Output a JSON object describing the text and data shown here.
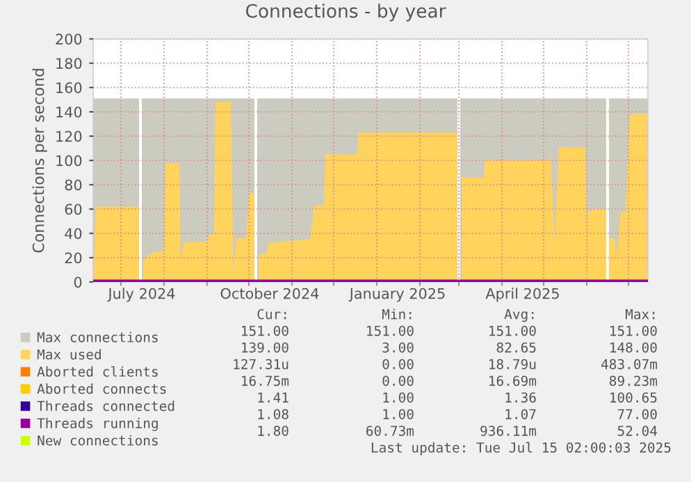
{
  "chart_data": {
    "type": "area",
    "title": "Connections - by year",
    "ylabel": "Connections per second",
    "xlim": [
      "2024-06-11",
      "2025-07-15"
    ],
    "ylim": [
      0,
      200
    ],
    "yticks": [
      0,
      20,
      40,
      60,
      80,
      100,
      120,
      140,
      160,
      180,
      200
    ],
    "xticks": [
      {
        "value": "2024-07-01",
        "label": null
      },
      {
        "value": "2024-07-16",
        "label": "July 2024"
      },
      {
        "value": "2024-08-01",
        "label": null
      },
      {
        "value": "2024-09-01",
        "label": null
      },
      {
        "value": "2024-10-01",
        "label": null
      },
      {
        "value": "2024-10-16",
        "label": "October 2024"
      },
      {
        "value": "2024-11-01",
        "label": null
      },
      {
        "value": "2024-12-01",
        "label": null
      },
      {
        "value": "2025-01-01",
        "label": null
      },
      {
        "value": "2025-01-16",
        "label": "January 2025"
      },
      {
        "value": "2025-02-01",
        "label": null
      },
      {
        "value": "2025-03-01",
        "label": null
      },
      {
        "value": "2025-04-01",
        "label": null
      },
      {
        "value": "2025-04-16",
        "label": "April 2025"
      },
      {
        "value": "2025-05-01",
        "label": null
      },
      {
        "value": "2025-06-01",
        "label": null
      },
      {
        "value": "2025-07-01",
        "label": null
      }
    ],
    "grid": true,
    "legend": "bottom",
    "series": [
      {
        "name": "Max connections",
        "color": "#cccbc0",
        "x": [
          "2024-06-11",
          "2024-07-14",
          "2024-07-15",
          "2024-07-16",
          "2024-10-05",
          "2024-10-06",
          "2024-10-07",
          "2025-02-28",
          "2025-03-01",
          "2025-03-02",
          "2025-06-15",
          "2025-06-16",
          "2025-06-17",
          "2025-07-15"
        ],
        "values": [
          151,
          151,
          null,
          151,
          151,
          null,
          151,
          151,
          null,
          151,
          151,
          null,
          151,
          151
        ]
      },
      {
        "name": "Max used",
        "color": "#ffd35c",
        "x": [
          "2024-06-11",
          "2024-06-13",
          "2024-07-14",
          "2024-07-15",
          "2024-07-17",
          "2024-07-20",
          "2024-07-27",
          "2024-08-01",
          "2024-08-02",
          "2024-08-12",
          "2024-08-13",
          "2024-08-16",
          "2024-08-31",
          "2024-09-02",
          "2024-09-06",
          "2024-09-07",
          "2024-09-18",
          "2024-09-20",
          "2024-09-22",
          "2024-09-29",
          "2024-10-01",
          "2024-10-05",
          "2024-10-06",
          "2024-10-08",
          "2024-10-14",
          "2024-10-15",
          "2024-11-01",
          "2024-11-14",
          "2024-11-17",
          "2024-11-24",
          "2024-11-25",
          "2024-12-18",
          "2024-12-19",
          "2025-02-28",
          "2025-03-01",
          "2025-03-03",
          "2025-03-19",
          "2025-03-20",
          "2025-05-05",
          "2025-05-06",
          "2025-05-09",
          "2025-05-12",
          "2025-05-31",
          "2025-06-01",
          "2025-06-02",
          "2025-06-06",
          "2025-06-15",
          "2025-06-16",
          "2025-06-17",
          "2025-06-21",
          "2025-06-23",
          "2025-06-25",
          "2025-06-29",
          "2025-07-02",
          "2025-07-15"
        ],
        "values": [
          0,
          62,
          62,
          null,
          17,
          22,
          25,
          25,
          98,
          98,
          22,
          33,
          33,
          38,
          40,
          148,
          148,
          10,
          36,
          36,
          73,
          73,
          null,
          22,
          24,
          32,
          34,
          35,
          63,
          63,
          105,
          105,
          123,
          123,
          null,
          86,
          86,
          100,
          100,
          107,
          34,
          111,
          111,
          45,
          58,
          60,
          60,
          null,
          36,
          36,
          22,
          57,
          57,
          138,
          139
        ]
      },
      {
        "name": "Aborted clients",
        "color": "#ff7f00",
        "type": "line"
      },
      {
        "name": "Aborted connects",
        "color": "#ffcc00",
        "type": "line"
      },
      {
        "name": "Threads connected",
        "color": "#330099",
        "type": "line"
      },
      {
        "name": "Threads running",
        "color": "#990099",
        "type": "line",
        "x": [
          "2024-06-11",
          "2025-07-15"
        ],
        "values": [
          1,
          1
        ]
      },
      {
        "name": "New connections",
        "color": "#ccff00",
        "type": "line"
      }
    ],
    "annotations": [
      "Cur:",
      "Min:",
      "Avg:",
      "Max:",
      "151.00",
      "151.00",
      "151.00",
      "151.00",
      "139.00",
      "3.00",
      "82.65",
      "148.00",
      "127.31u",
      "0.00",
      "18.79u",
      "483.07m",
      "16.75m",
      "0.00",
      "16.69m",
      "89.23m",
      "1.41",
      "1.00",
      "1.36",
      "100.65",
      "1.08",
      "1.00",
      "1.07",
      "77.00",
      "1.80",
      "60.73m",
      "936.11m",
      "52.04",
      "Last update: Tue Jul 15 02:00:03 2025"
    ]
  }
}
